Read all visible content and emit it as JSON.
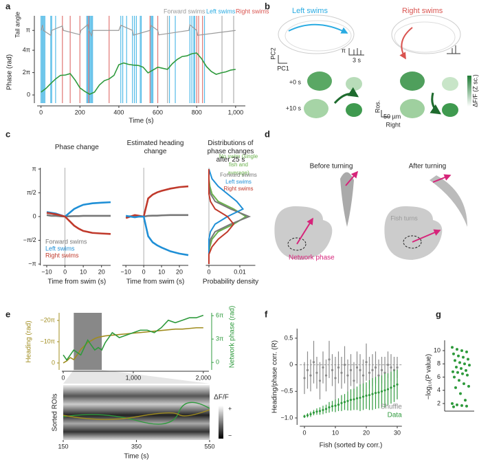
{
  "panel_labels": [
    "a",
    "b",
    "c",
    "d",
    "e",
    "f",
    "g"
  ],
  "panel_b": {
    "left_title": "Left swims",
    "right_title": "Right swims",
    "pc2": "PC2",
    "pc1": "PC1",
    "scale_angle": "π",
    "scale_time": "3 s",
    "t0": "+0 s",
    "t10": "+10 s",
    "axis_ros": "Ros.",
    "axis_right": "Right",
    "scale_bar": "50 µm",
    "colorbar_label": "ΔF/F (Z sc.)"
  },
  "panel_d": {
    "before": "Before turning",
    "after": "After turning",
    "transition": "Fish turns",
    "phase_label": "Network phase"
  },
  "chart_data": [
    {
      "type": "line",
      "xlabel": "Time (s)",
      "ylabel": "Phase (rad)",
      "y2label": "Tail angle",
      "xlim": [
        -20,
        1050
      ],
      "xticks": [
        0,
        200,
        400,
        600,
        800,
        {
          "value": 1000,
          "label": "1,000"
        }
      ],
      "ylim": [
        -2.3,
        23.8
      ],
      "yticks": [
        0,
        {
          "value": 6.283,
          "label": "2π"
        },
        {
          "value": 12.566,
          "label": "4π"
        }
      ],
      "y2lim": [
        -30,
        12.3
      ],
      "y2ticks": [
        {
          "value": 3.1416,
          "label": "π"
        }
      ],
      "swim_events": [
        {
          "name": "Forward swims",
          "color": "#999999",
          "x": [
            650,
            930,
            990
          ]
        },
        {
          "name": "Left swims",
          "color": "#29abe2",
          "x": [
            0,
            5,
            10,
            15,
            20,
            50,
            55,
            75,
            235,
            240,
            245,
            250,
            255,
            260,
            265,
            410,
            420,
            440,
            470,
            480,
            490,
            510,
            515,
            565,
            570,
            575,
            660,
            690,
            765,
            775,
            785,
            790,
            840
          ]
        },
        {
          "name": "Right swims",
          "color": "#d9534f",
          "x": [
            110,
            150,
            200,
            245,
            350,
            560,
            600,
            800,
            810,
            830
          ]
        }
      ],
      "series": [
        {
          "color": "#9a9a9a",
          "axis": "y2",
          "x": [
            0,
            8,
            12,
            50,
            55,
            110,
            115,
            200,
            205,
            240,
            245,
            260,
            265,
            400,
            410,
            470,
            475,
            560,
            565,
            600,
            605,
            760,
            765,
            800,
            805,
            1000
          ],
          "values": [
            3.14,
            5.6,
            3.14,
            0.9,
            3.14,
            5.2,
            3.14,
            1.2,
            3.14,
            5.8,
            3.14,
            0.7,
            3.14,
            3.14,
            5.5,
            3.14,
            1.0,
            3.14,
            5.4,
            3.14,
            1.1,
            3.14,
            5.7,
            3.14,
            0.9,
            3.14
          ]
        },
        {
          "color": "#2e9a3c",
          "x": [
            0,
            25,
            50,
            75,
            100,
            125,
            150,
            175,
            200,
            225,
            250,
            275,
            300,
            325,
            350,
            375,
            400,
            425,
            450,
            475,
            500,
            525,
            550,
            575,
            600,
            625,
            650,
            675,
            700,
            725,
            750,
            775,
            800,
            825,
            850,
            875,
            900,
            925,
            950,
            975,
            1000
          ],
          "values": [
            0.8,
            1.8,
            3.2,
            4.5,
            5.5,
            5.6,
            6.0,
            4.2,
            2.0,
            1.0,
            0.2,
            0.8,
            2.8,
            4.0,
            4.5,
            5.5,
            8.5,
            9.0,
            8.6,
            8.4,
            8.3,
            7.8,
            6.2,
            7.0,
            7.8,
            7.5,
            7.2,
            8.8,
            10.0,
            10.8,
            11.0,
            11.6,
            11.8,
            10.2,
            8.0,
            6.6,
            5.8,
            6.2,
            6.5,
            7.0,
            7.2
          ]
        }
      ]
    },
    {
      "type": "line",
      "title": "Phase change",
      "xlabel": "Time from swim (s)",
      "xlim": [
        -12,
        25
      ],
      "xticks": [
        {
          "value": -10,
          "label": "−10"
        },
        0,
        10,
        20
      ],
      "ylim": [
        -3.23,
        3.23
      ],
      "yticks": [
        {
          "value": 3.1416,
          "label": "π"
        },
        {
          "value": 1.5708,
          "label": "π/2"
        },
        0,
        {
          "value": -1.5708,
          "label": "−π/2"
        },
        {
          "value": -3.1416,
          "label": "−π"
        }
      ],
      "vline": 0,
      "x": [
        -10,
        -7.5,
        -5,
        -2.5,
        0,
        2.5,
        5,
        7.5,
        10,
        15,
        20,
        25
      ],
      "series": [
        {
          "name": "Forward swims",
          "color": "#777777",
          "values": [
            0.1,
            0.05,
            0.05,
            0.02,
            0,
            0.02,
            0.03,
            0.03,
            0.05,
            0.05,
            0.05,
            0.05
          ]
        },
        {
          "name": "Left swims",
          "color": "#1f8fd6",
          "values": [
            0.3,
            0.25,
            0.2,
            0.1,
            0,
            0.25,
            0.5,
            0.65,
            0.78,
            0.88,
            0.92,
            0.95
          ]
        },
        {
          "name": "Right swims",
          "color": "#c0392b",
          "values": [
            0.25,
            0.2,
            0.15,
            0.08,
            0,
            -0.3,
            -0.6,
            -0.8,
            -0.95,
            -1.08,
            -1.12,
            -1.15
          ]
        }
      ]
    },
    {
      "type": "line",
      "title": "Estimated heading change",
      "xlabel": "Time from swim (s)",
      "xlim": [
        -12,
        25
      ],
      "xticks": [
        {
          "value": -10,
          "label": "−10"
        },
        0,
        10,
        20
      ],
      "ylim": [
        -3.23,
        3.23
      ],
      "vline": 0,
      "x": [
        -10,
        -7.5,
        -5,
        -2.5,
        0,
        2.5,
        5,
        7.5,
        10,
        15,
        20,
        25
      ],
      "series": [
        {
          "color": "#777777",
          "values": [
            0,
            0.02,
            0,
            0.01,
            0,
            0.05,
            0.06,
            0.06,
            0.08,
            0.1,
            0.1,
            0.1
          ]
        },
        {
          "color": "#c0392b",
          "values": [
            -0.1,
            0,
            0.1,
            0.05,
            0,
            1.2,
            1.45,
            1.6,
            1.7,
            1.85,
            1.95,
            2.0
          ]
        },
        {
          "color": "#1f8fd6",
          "values": [
            0.05,
            0,
            -0.05,
            0,
            0,
            -1.3,
            -1.7,
            -1.9,
            -2.05,
            -2.3,
            -2.45,
            -2.55
          ]
        }
      ]
    },
    {
      "type": "density",
      "title": "Distributions of phase changes after 25 s",
      "xlabel": "Probability density",
      "xlim": [
        -0.001,
        0.015
      ],
      "xticks": [
        0,
        0.01
      ],
      "ylim": [
        -3.23,
        3.23
      ],
      "vline": 0,
      "y": [
        -3.14,
        -2.5,
        -2,
        -1.5,
        -1,
        -0.5,
        0,
        0.5,
        1,
        1.5,
        2,
        2.5,
        3.14
      ],
      "series": [
        {
          "name": "No swim (single fish and average)",
          "color": "#6ab04c",
          "values": [
            0,
            0,
            0.0003,
            0.001,
            0.003,
            0.008,
            0.012,
            0.008,
            0.003,
            0.001,
            0.0003,
            0,
            0
          ]
        },
        {
          "name": "Forward swims",
          "color": "#777777",
          "values": [
            0,
            0,
            0,
            0.0005,
            0.002,
            0.007,
            0.013,
            0.007,
            0.002,
            0.0005,
            0,
            0,
            0
          ]
        },
        {
          "name": "Left swims",
          "color": "#1f8fd6",
          "values": [
            0,
            0,
            0,
            0,
            0.0005,
            0.002,
            0.006,
            0.011,
            0.009,
            0.006,
            0.003,
            0.001,
            0
          ]
        },
        {
          "name": "Right swims",
          "color": "#c0392b",
          "values": [
            0,
            0,
            0.001,
            0.003,
            0.006,
            0.008,
            0.006,
            0.002,
            0.0005,
            0,
            0,
            0,
            0
          ]
        }
      ]
    },
    {
      "type": "line",
      "ylabel": "Heading (rad)",
      "y2label": "Network phase (rad)",
      "xlim": [
        -20,
        2080
      ],
      "xticks": [
        0,
        {
          "value": 1000,
          "label": "1,000"
        },
        {
          "value": 2000,
          "label": "2,000"
        }
      ],
      "ylim": [
        10.2,
        -74.1
      ],
      "yticks": [
        0,
        {
          "value": -31.416,
          "label": "−10π"
        },
        {
          "value": -62.832,
          "label": "−20π"
        }
      ],
      "y2lim": [
        -3,
        20
      ],
      "y2ticks": [
        0,
        {
          "value": 9.4248,
          "label": "3π"
        },
        {
          "value": 18.8496,
          "label": "6π"
        }
      ],
      "highlight": [
        150,
        550
      ],
      "series": [
        {
          "color": "#a08c1e",
          "x": [
            0,
            50,
            100,
            150,
            200,
            250,
            300,
            350,
            400,
            450,
            500,
            550,
            600,
            700,
            800,
            900,
            1000,
            1100,
            1200,
            1300,
            1400,
            1500,
            1600,
            1700,
            1800,
            1900,
            2000
          ],
          "values": [
            0,
            -3,
            -8,
            -5,
            -12,
            -20,
            -25,
            -30,
            -33,
            -36,
            -38,
            -39,
            -40,
            -41,
            -42,
            -43,
            -44,
            -45,
            -46,
            -47,
            -48,
            -49,
            -50,
            -50,
            -51,
            -52,
            -52
          ]
        },
        {
          "color": "#2e9a3c",
          "axis": "y2",
          "x": [
            0,
            50,
            100,
            150,
            200,
            250,
            300,
            350,
            400,
            450,
            500,
            550,
            600,
            700,
            800,
            900,
            1000,
            1100,
            1200,
            1300,
            1400,
            1500,
            1600,
            1700,
            1800,
            1900,
            2000
          ],
          "values": [
            3,
            1,
            3,
            5,
            4,
            3,
            6,
            9,
            7,
            5,
            6,
            5,
            8,
            12,
            10,
            11,
            12,
            13,
            13,
            12,
            14,
            17,
            16,
            17,
            18,
            18,
            19
          ]
        }
      ]
    },
    {
      "type": "heatmap",
      "xlabel": "Time (s)",
      "ylabel": "Sorted ROIs",
      "xlim": [
        150,
        550
      ],
      "xticks": [
        150,
        350,
        550
      ],
      "colorbar_label": "ΔF/F",
      "colorbar_labels": [
        "+",
        "−"
      ]
    },
    {
      "type": "errorbar",
      "xlabel": "Fish (sorted by corr.)",
      "ylabel": "Heading/phase corr. (R)",
      "xlim": [
        -1.5,
        31.5
      ],
      "xticks": [
        0,
        10,
        20,
        30
      ],
      "ylim": [
        -1.13,
        0.68
      ],
      "yticks": [
        0.5,
        0,
        {
          "value": -0.5,
          "label": "−0.5"
        },
        {
          "value": -1,
          "label": "−1.0"
        }
      ],
      "hline": 0,
      "x": [
        0,
        1,
        2,
        3,
        4,
        5,
        6,
        7,
        8,
        9,
        10,
        11,
        12,
        13,
        14,
        15,
        16,
        17,
        18,
        19,
        20,
        21,
        22,
        23,
        24,
        25,
        26,
        27,
        28,
        29,
        30
      ],
      "series": [
        {
          "name": "Shuffle",
          "color": "#8a8a8a",
          "values": [
            -0.25,
            -0.1,
            -0.2,
            0.05,
            -0.15,
            -0.3,
            -0.05,
            -0.2,
            0.1,
            -0.1,
            -0.25,
            -0.05,
            -0.15,
            0.0,
            -0.2,
            -0.1,
            -0.3,
            -0.05,
            -0.1,
            -0.2,
            0.05,
            -0.15,
            -0.1,
            -0.05,
            -0.2,
            -0.1,
            -0.15,
            0.0,
            -0.05,
            -0.1,
            -0.05
          ],
          "errors": [
            0.3,
            0.35,
            0.3,
            0.4,
            0.3,
            0.35,
            0.3,
            0.3,
            0.35,
            0.3,
            0.4,
            0.3,
            0.3,
            0.35,
            0.3,
            0.3,
            0.35,
            0.3,
            0.3,
            0.3,
            0.35,
            0.3,
            0.3,
            0.3,
            0.3,
            0.25,
            0.3,
            0.25,
            0.25,
            0.25,
            0.2
          ]
        },
        {
          "name": "Data",
          "color": "#2e9a3c",
          "values": [
            -0.97,
            -0.95,
            -0.93,
            -0.9,
            -0.88,
            -0.87,
            -0.85,
            -0.83,
            -0.8,
            -0.78,
            -0.77,
            -0.75,
            -0.72,
            -0.7,
            -0.68,
            -0.66,
            -0.65,
            -0.63,
            -0.62,
            -0.6,
            -0.58,
            -0.57,
            -0.55,
            -0.53,
            -0.52,
            -0.5,
            -0.48,
            -0.46,
            -0.43,
            -0.4,
            -0.37
          ],
          "errors": [
            0.03,
            0.04,
            0.05,
            0.05,
            0.06,
            0.07,
            0.08,
            0.08,
            0.1,
            0.1,
            0.12,
            0.12,
            0.15,
            0.15,
            0.18,
            0.2,
            0.2,
            0.22,
            0.25,
            0.25,
            0.25,
            0.28,
            0.3,
            0.3,
            0.3,
            0.3,
            0.32,
            0.3,
            0.3,
            0.3,
            0.28
          ]
        }
      ]
    },
    {
      "type": "strip",
      "ylabel": "−log₁₀(P value)",
      "ylim": [
        0.85,
        11.56
      ],
      "yticks": [
        2,
        4,
        6,
        8,
        10
      ],
      "color": "#2e9a3c",
      "values": [
        10.5,
        10.2,
        10,
        9.8,
        9.5,
        9.2,
        9,
        8.7,
        8.5,
        8.2,
        8,
        7.8,
        7.5,
        7.3,
        7,
        6.8,
        6.7,
        6.5,
        6.3,
        6,
        5.5,
        5,
        4.6,
        4.4,
        3.5,
        2.5,
        2,
        1.8,
        1.7,
        1.6,
        1.5
      ]
    }
  ]
}
